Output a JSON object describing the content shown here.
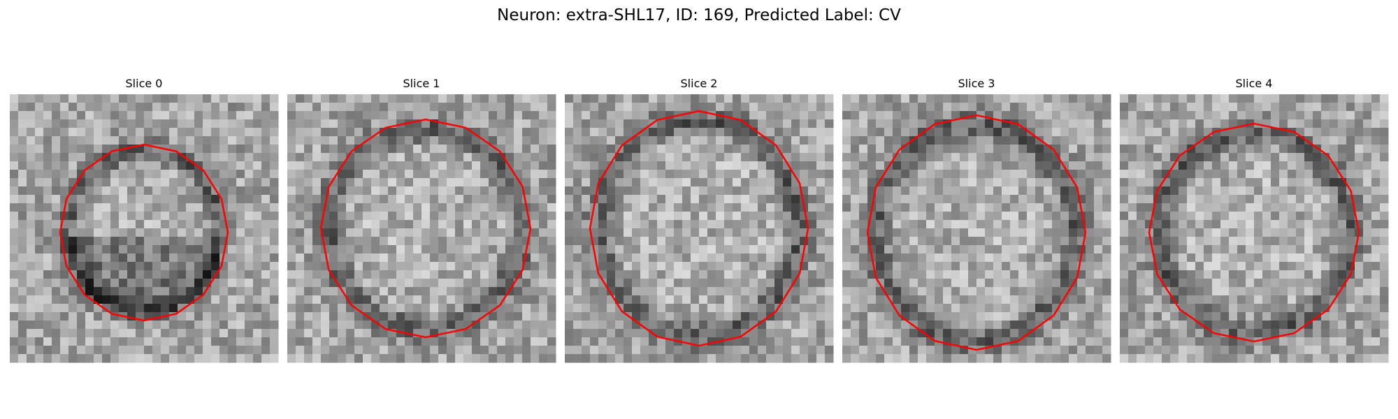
{
  "figure": {
    "title": "Neuron: extra-SHL17, ID: 169, Predicted Label: CV",
    "contour_color": "#ff0000"
  },
  "panels": [
    {
      "label": "Slice 0"
    },
    {
      "label": "Slice 1"
    },
    {
      "label": "Slice 2"
    },
    {
      "label": "Slice 3"
    },
    {
      "label": "Slice 4"
    }
  ]
}
